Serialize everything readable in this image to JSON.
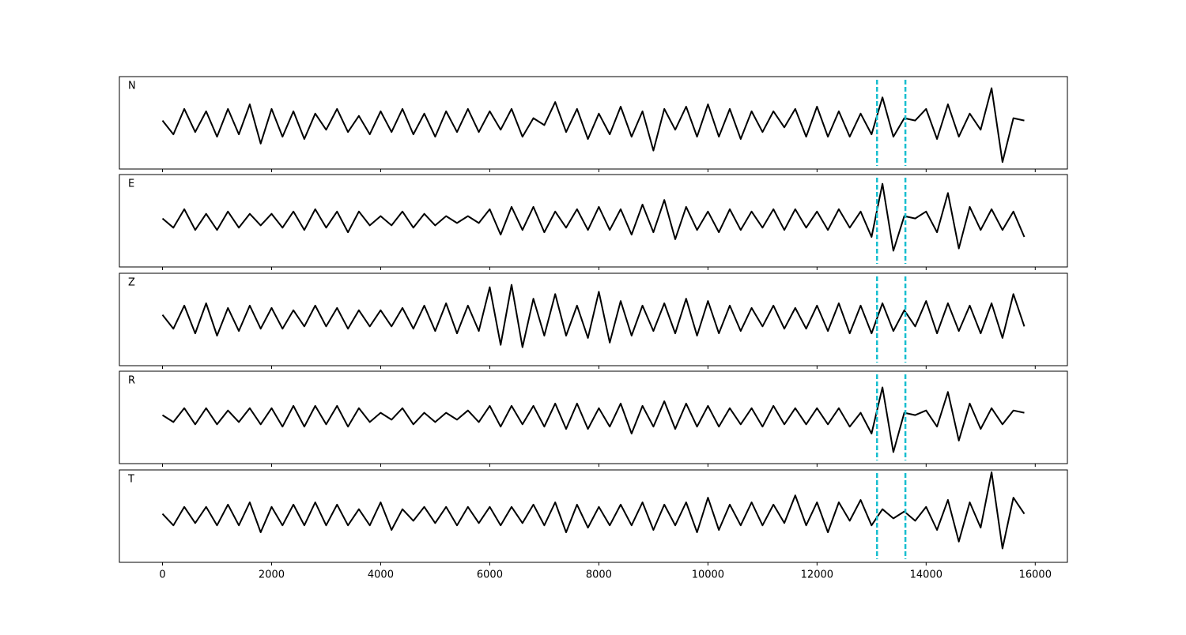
{
  "chart_data": {
    "type": "line",
    "color": "#000000",
    "xlim": [
      -790,
      16590
    ],
    "ylim": [
      -1,
      1
    ],
    "xticks": [
      0,
      2000,
      4000,
      6000,
      8000,
      10000,
      12000,
      14000,
      16000
    ],
    "markers": {
      "values": [
        13100,
        13620
      ],
      "color": "#17becf"
    },
    "x": [
      0,
      200,
      400,
      600,
      800,
      1000,
      1200,
      1400,
      1600,
      1800,
      2000,
      2200,
      2400,
      2600,
      2800,
      3000,
      3200,
      3400,
      3600,
      3800,
      4000,
      4200,
      4400,
      4600,
      4800,
      5000,
      5200,
      5400,
      5600,
      5800,
      6000,
      6200,
      6400,
      6600,
      6800,
      7000,
      7200,
      7400,
      7600,
      7800,
      8000,
      8200,
      8400,
      8600,
      8800,
      9000,
      9200,
      9400,
      9600,
      9800,
      10000,
      10200,
      10400,
      10600,
      10800,
      11000,
      11200,
      11400,
      11600,
      11800,
      12000,
      12200,
      12400,
      12600,
      12800,
      13000,
      13200,
      13400,
      13600,
      13800,
      14000,
      14200,
      14400,
      14600,
      14800,
      15000,
      15200,
      15400,
      15600,
      15800
    ],
    "panels": [
      {
        "name": "N",
        "values": [
          0.05,
          -0.25,
          0.3,
          -0.2,
          0.25,
          -0.3,
          0.3,
          -0.25,
          0.4,
          -0.45,
          0.3,
          -0.3,
          0.25,
          -0.35,
          0.2,
          -0.15,
          0.3,
          -0.2,
          0.15,
          -0.25,
          0.25,
          -0.2,
          0.3,
          -0.25,
          0.2,
          -0.3,
          0.25,
          -0.2,
          0.3,
          -0.2,
          0.25,
          -0.15,
          0.3,
          -0.3,
          0.1,
          -0.05,
          0.45,
          -0.2,
          0.3,
          -0.35,
          0.2,
          -0.25,
          0.35,
          -0.3,
          0.25,
          -0.6,
          0.3,
          -0.15,
          0.35,
          -0.3,
          0.4,
          -0.3,
          0.3,
          -0.35,
          0.25,
          -0.2,
          0.25,
          -0.1,
          0.3,
          -0.3,
          0.35,
          -0.3,
          0.25,
          -0.3,
          0.2,
          -0.25,
          0.55,
          -0.3,
          0.1,
          0.05,
          0.3,
          -0.35,
          0.4,
          -0.3,
          0.2,
          -0.15,
          0.75,
          -0.85,
          0.1,
          0.05
        ]
      },
      {
        "name": "E",
        "values": [
          0.05,
          -0.15,
          0.25,
          -0.2,
          0.15,
          -0.2,
          0.2,
          -0.15,
          0.15,
          -0.1,
          0.15,
          -0.15,
          0.2,
          -0.2,
          0.25,
          -0.15,
          0.2,
          -0.25,
          0.2,
          -0.1,
          0.1,
          -0.1,
          0.2,
          -0.15,
          0.15,
          -0.1,
          0.1,
          -0.05,
          0.1,
          -0.05,
          0.25,
          -0.3,
          0.3,
          -0.2,
          0.3,
          -0.25,
          0.2,
          -0.15,
          0.25,
          -0.2,
          0.3,
          -0.2,
          0.25,
          -0.3,
          0.35,
          -0.25,
          0.45,
          -0.4,
          0.3,
          -0.2,
          0.2,
          -0.25,
          0.25,
          -0.2,
          0.2,
          -0.15,
          0.25,
          -0.2,
          0.25,
          -0.15,
          0.2,
          -0.2,
          0.25,
          -0.15,
          0.2,
          -0.35,
          0.8,
          -0.65,
          0.1,
          0.05,
          0.2,
          -0.25,
          0.6,
          -0.6,
          0.3,
          -0.2,
          0.25,
          -0.2,
          0.2,
          -0.35
        ]
      },
      {
        "name": "Z",
        "values": [
          0.1,
          -0.2,
          0.3,
          -0.3,
          0.35,
          -0.35,
          0.25,
          -0.25,
          0.3,
          -0.2,
          0.25,
          -0.2,
          0.2,
          -0.15,
          0.3,
          -0.15,
          0.25,
          -0.2,
          0.2,
          -0.15,
          0.2,
          -0.15,
          0.25,
          -0.2,
          0.3,
          -0.25,
          0.35,
          -0.3,
          0.3,
          -0.25,
          0.7,
          -0.55,
          0.75,
          -0.6,
          0.45,
          -0.35,
          0.55,
          -0.35,
          0.3,
          -0.4,
          0.6,
          -0.5,
          0.4,
          -0.35,
          0.3,
          -0.25,
          0.35,
          -0.3,
          0.45,
          -0.35,
          0.4,
          -0.3,
          0.3,
          -0.25,
          0.25,
          -0.15,
          0.3,
          -0.2,
          0.25,
          -0.2,
          0.3,
          -0.25,
          0.35,
          -0.3,
          0.3,
          -0.3,
          0.35,
          -0.25,
          0.2,
          -0.15,
          0.4,
          -0.3,
          0.35,
          -0.25,
          0.3,
          -0.3,
          0.35,
          -0.4,
          0.55,
          -0.15
        ]
      },
      {
        "name": "R",
        "values": [
          0.05,
          -0.1,
          0.2,
          -0.15,
          0.2,
          -0.15,
          0.15,
          -0.1,
          0.2,
          -0.15,
          0.2,
          -0.2,
          0.25,
          -0.2,
          0.25,
          -0.15,
          0.25,
          -0.2,
          0.2,
          -0.1,
          0.1,
          -0.05,
          0.2,
          -0.15,
          0.1,
          -0.1,
          0.1,
          -0.05,
          0.15,
          -0.1,
          0.25,
          -0.2,
          0.25,
          -0.15,
          0.25,
          -0.2,
          0.3,
          -0.25,
          0.3,
          -0.25,
          0.2,
          -0.2,
          0.3,
          -0.35,
          0.25,
          -0.2,
          0.35,
          -0.25,
          0.3,
          -0.2,
          0.25,
          -0.2,
          0.2,
          -0.15,
          0.2,
          -0.2,
          0.25,
          -0.15,
          0.2,
          -0.15,
          0.2,
          -0.15,
          0.2,
          -0.2,
          0.1,
          -0.35,
          0.65,
          -0.75,
          0.1,
          0.05,
          0.15,
          -0.2,
          0.55,
          -0.5,
          0.3,
          -0.25,
          0.2,
          -0.15,
          0.15,
          0.1
        ]
      },
      {
        "name": "T",
        "values": [
          0.05,
          -0.2,
          0.2,
          -0.15,
          0.2,
          -0.2,
          0.25,
          -0.2,
          0.3,
          -0.35,
          0.2,
          -0.2,
          0.25,
          -0.2,
          0.3,
          -0.2,
          0.25,
          -0.2,
          0.15,
          -0.2,
          0.3,
          -0.3,
          0.15,
          -0.1,
          0.2,
          -0.15,
          0.2,
          -0.2,
          0.2,
          -0.15,
          0.2,
          -0.2,
          0.2,
          -0.15,
          0.25,
          -0.2,
          0.3,
          -0.35,
          0.25,
          -0.25,
          0.2,
          -0.2,
          0.25,
          -0.2,
          0.3,
          -0.3,
          0.25,
          -0.2,
          0.3,
          -0.35,
          0.4,
          -0.3,
          0.25,
          -0.2,
          0.3,
          -0.2,
          0.25,
          -0.15,
          0.45,
          -0.2,
          0.3,
          -0.35,
          0.3,
          -0.1,
          0.35,
          -0.2,
          0.15,
          -0.05,
          0.1,
          -0.1,
          0.2,
          -0.3,
          0.35,
          -0.55,
          0.3,
          -0.25,
          0.95,
          -0.7,
          0.4,
          0.05
        ]
      }
    ]
  }
}
